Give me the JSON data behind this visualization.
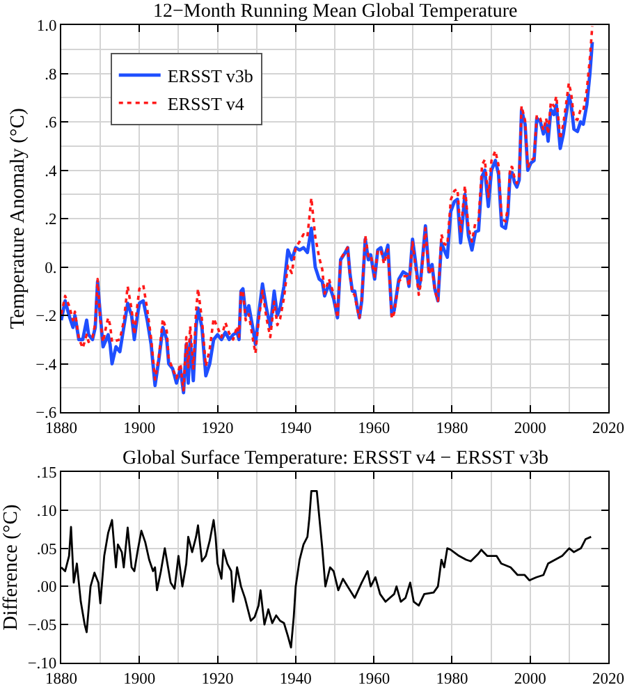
{
  "chart_data": [
    {
      "type": "line",
      "title": "12−Month Running Mean Global Temperature",
      "ylabel": "Temperature Anomaly (°C)",
      "xlim": [
        1880,
        2020
      ],
      "xticks": [
        1880,
        {
          "value": 1890,
          "label": null
        },
        1900,
        {
          "value": 1910,
          "label": null
        },
        1920,
        {
          "value": 1930,
          "label": null
        },
        1940,
        {
          "value": 1950,
          "label": null
        },
        1960,
        {
          "value": 1970,
          "label": null
        },
        1980,
        {
          "value": 1990,
          "label": null
        },
        2000,
        {
          "value": 2010,
          "label": null
        },
        2020
      ],
      "ylim": [
        -0.6,
        1.0
      ],
      "yticks": [
        {
          "value": -0.6,
          "label": "−.6"
        },
        {
          "value": -0.5,
          "label": null
        },
        {
          "value": -0.4,
          "label": "−.4"
        },
        {
          "value": -0.3,
          "label": null
        },
        {
          "value": -0.2,
          "label": "−.2"
        },
        {
          "value": -0.1,
          "label": null
        },
        {
          "value": 0,
          "label": "0."
        },
        {
          "value": 0.1,
          "label": null
        },
        {
          "value": 0.2,
          "label": ".2"
        },
        {
          "value": 0.3,
          "label": null
        },
        {
          "value": 0.4,
          "label": ".4"
        },
        {
          "value": 0.5,
          "label": null
        },
        {
          "value": 0.6,
          "label": ".6"
        },
        {
          "value": 0.7,
          "label": null
        },
        {
          "value": 0.8,
          "label": ".8"
        },
        {
          "value": 0.9,
          "label": null
        },
        {
          "value": 1.0,
          "label": "1.0"
        }
      ],
      "grid": true,
      "legend": "top left",
      "series": [
        {
          "name": "ERSST v3b",
          "color": "#1f4fff",
          "line_style": "solid",
          "x": [
            1880,
            1881,
            1882,
            1883,
            1883.5,
            1884.5,
            1885.5,
            1886.5,
            1887,
            1888,
            1888.7,
            1889.3,
            1890,
            1890.7,
            1891.5,
            1892,
            1892.5,
            1893,
            1894,
            1895,
            1896,
            1897,
            1898,
            1898.7,
            1899.5,
            1900,
            1901,
            1902,
            1903,
            1904,
            1905,
            1906,
            1907,
            1907.5,
            1908.5,
            1909.5,
            1910.5,
            1911.3,
            1912,
            1912.5,
            1913,
            1913.8,
            1914.5,
            1915,
            1916,
            1917,
            1918,
            1919,
            1920,
            1921,
            1922,
            1923,
            1924,
            1925,
            1925.5,
            1926,
            1926.5,
            1927.2,
            1928,
            1929,
            1929.7,
            1930.5,
            1931.5,
            1932.5,
            1933.5,
            1934.5,
            1935.3,
            1936,
            1937,
            1938,
            1939,
            1940,
            1941,
            1942,
            1943,
            1944,
            1945,
            1946,
            1946.8,
            1947.4,
            1948.5,
            1949.7,
            1950.7,
            1951.5,
            1952.7,
            1953.3,
            1953.9,
            1954.5,
            1955.1,
            1955.7,
            1956.3,
            1956.9,
            1957.8,
            1958.6,
            1959.2,
            1960.2,
            1961,
            1961.8,
            1962.6,
            1963.6,
            1964,
            1964.6,
            1965.2,
            1966.4,
            1967.5,
            1968.5,
            1969,
            1969.9,
            1970.6,
            1971.5,
            1972,
            1973.2,
            1974.1,
            1974.9,
            1975.6,
            1976.4,
            1977.3,
            1978,
            1978.8,
            1979.7,
            1980.6,
            1981.4,
            1982.2,
            1983.3,
            1984.2,
            1985.1,
            1986,
            1986.8,
            1987.7,
            1988.4,
            1989.3,
            1990.1,
            1991.1,
            1991.9,
            1992.7,
            1993.7,
            1994.3,
            1994.9,
            1995.4,
            1996,
            1996.6,
            1997.2,
            1997.8,
            1998.7,
            1999.4,
            2000.2,
            2001,
            2001.7,
            2002.6,
            2003.4,
            2004.1,
            2004.6,
            2005.3,
            2006.1,
            2006.7,
            2007.7,
            2008.5,
            2009.3,
            2009.9,
            2010.5,
            2011.2,
            2012.1,
            2012.9,
            2013.6,
            2014.5,
            2015.3,
            2015.9
          ],
          "values": [
            -0.22,
            -0.14,
            -0.2,
            -0.25,
            -0.2,
            -0.3,
            -0.3,
            -0.22,
            -0.28,
            -0.3,
            -0.25,
            -0.06,
            -0.2,
            -0.33,
            -0.3,
            -0.28,
            -0.32,
            -0.4,
            -0.33,
            -0.35,
            -0.25,
            -0.15,
            -0.2,
            -0.3,
            -0.2,
            -0.15,
            -0.14,
            -0.22,
            -0.32,
            -0.49,
            -0.38,
            -0.25,
            -0.3,
            -0.4,
            -0.42,
            -0.48,
            -0.42,
            -0.52,
            -0.32,
            -0.48,
            -0.3,
            -0.47,
            -0.25,
            -0.17,
            -0.25,
            -0.45,
            -0.4,
            -0.3,
            -0.28,
            -0.3,
            -0.27,
            -0.3,
            -0.28,
            -0.27,
            -0.3,
            -0.1,
            -0.09,
            -0.2,
            -0.16,
            -0.25,
            -0.32,
            -0.2,
            -0.07,
            -0.17,
            -0.25,
            -0.1,
            -0.2,
            -0.17,
            -0.08,
            0.07,
            0.03,
            0.08,
            0.07,
            0.08,
            0.06,
            0.16,
            0.0,
            -0.05,
            -0.06,
            -0.12,
            -0.07,
            -0.13,
            -0.21,
            0.03,
            0.06,
            0.08,
            -0.03,
            -0.1,
            -0.1,
            -0.16,
            -0.21,
            -0.14,
            0.115,
            0.03,
            0.05,
            -0.05,
            0.07,
            0.08,
            0.03,
            0.09,
            -0.03,
            -0.2,
            -0.18,
            -0.05,
            -0.02,
            -0.03,
            -0.08,
            0.115,
            0.03,
            -0.09,
            -0.05,
            0.17,
            -0.02,
            0.01,
            -0.09,
            -0.14,
            0.1,
            0.07,
            0.04,
            0.23,
            0.27,
            0.28,
            0.1,
            0.3,
            0.13,
            0.07,
            0.145,
            0.15,
            0.375,
            0.4,
            0.25,
            0.4,
            0.44,
            0.385,
            0.17,
            0.16,
            0.22,
            0.39,
            0.39,
            0.35,
            0.33,
            0.36,
            0.65,
            0.59,
            0.4,
            0.43,
            0.44,
            0.615,
            0.6,
            0.55,
            0.59,
            0.52,
            0.65,
            0.63,
            0.67,
            0.49,
            0.55,
            0.64,
            0.71,
            0.67,
            0.57,
            0.56,
            0.6,
            0.59,
            0.67,
            0.8,
            0.93
          ]
        },
        {
          "name": "ERSST v4",
          "color": "#ff1a1a",
          "line_style": "dotted",
          "x": [
            1880,
            1881,
            1882,
            1883,
            1883.5,
            1884.5,
            1885.5,
            1886.5,
            1887,
            1888,
            1888.7,
            1889.3,
            1890,
            1890.7,
            1891.5,
            1892,
            1892.5,
            1893,
            1894,
            1895,
            1896,
            1897,
            1898,
            1898.7,
            1899.5,
            1900,
            1901,
            1902,
            1903,
            1904,
            1905,
            1906,
            1907,
            1907.5,
            1908.5,
            1909.5,
            1910.5,
            1911.3,
            1912,
            1912.5,
            1913,
            1913.8,
            1914.5,
            1915,
            1916,
            1917,
            1918,
            1919,
            1920,
            1921,
            1922,
            1923,
            1924,
            1925,
            1925.5,
            1926,
            1926.5,
            1927.2,
            1928,
            1929,
            1929.7,
            1930.5,
            1931.5,
            1932.5,
            1933.5,
            1934.5,
            1935.3,
            1936,
            1937,
            1938,
            1939,
            1940,
            1941,
            1942,
            1943,
            1944,
            1945,
            1946,
            1946.8,
            1947.4,
            1948.5,
            1949.7,
            1950.7,
            1951.5,
            1952.7,
            1953.3,
            1953.9,
            1954.5,
            1955.1,
            1955.7,
            1956.3,
            1956.9,
            1957.8,
            1958.6,
            1959.2,
            1960.2,
            1961,
            1961.8,
            1962.6,
            1963.6,
            1964,
            1964.6,
            1965.2,
            1966.4,
            1967.5,
            1968.5,
            1969,
            1969.9,
            1970.6,
            1971.5,
            1972,
            1973.2,
            1974.1,
            1974.9,
            1975.6,
            1976.4,
            1977.3,
            1978,
            1978.8,
            1979.7,
            1980.6,
            1981.4,
            1982.2,
            1983.3,
            1984.2,
            1985.1,
            1986,
            1986.8,
            1987.7,
            1988.4,
            1989.3,
            1990.1,
            1991.1,
            1991.9,
            1992.7,
            1993.7,
            1994.3,
            1994.9,
            1995.4,
            1996,
            1996.6,
            1997.2,
            1997.8,
            1998.7,
            1999.4,
            2000.2,
            2001,
            2001.7,
            2002.6,
            2003.4,
            2004.1,
            2004.6,
            2005.3,
            2006.1,
            2006.7,
            2007.7,
            2008.5,
            2009.3,
            2009.9,
            2010.5,
            2011.2,
            2012.1,
            2012.9,
            2013.6,
            2014.5,
            2015.3,
            2015.9
          ],
          "values": [
            -0.195,
            -0.12,
            -0.16,
            -0.22,
            -0.185,
            -0.295,
            -0.335,
            -0.28,
            -0.31,
            -0.29,
            -0.235,
            -0.05,
            -0.22,
            -0.31,
            -0.245,
            -0.21,
            -0.24,
            -0.31,
            -0.305,
            -0.3,
            -0.225,
            -0.08,
            -0.175,
            -0.28,
            -0.155,
            -0.09,
            -0.075,
            -0.175,
            -0.295,
            -0.465,
            -0.37,
            -0.215,
            -0.265,
            -0.38,
            -0.42,
            -0.46,
            -0.4,
            -0.51,
            -0.29,
            -0.415,
            -0.245,
            -0.42,
            -0.185,
            -0.09,
            -0.217,
            -0.41,
            -0.34,
            -0.213,
            -0.25,
            -0.29,
            -0.23,
            -0.275,
            -0.3,
            -0.245,
            -0.288,
            -0.1,
            -0.098,
            -0.22,
            -0.195,
            -0.293,
            -0.357,
            -0.225,
            -0.098,
            -0.21,
            -0.29,
            -0.143,
            -0.24,
            -0.215,
            -0.128,
            0.005,
            -0.025,
            0.08,
            0.105,
            0.135,
            0.125,
            0.285,
            0.125,
            0.04,
            -0.01,
            -0.11,
            -0.05,
            -0.11,
            -0.21,
            0.033,
            0.065,
            0.08,
            -0.035,
            -0.11,
            -0.115,
            -0.17,
            -0.21,
            -0.135,
            0.13,
            0.045,
            0.05,
            -0.04,
            0.07,
            0.068,
            0.013,
            0.072,
            -0.046,
            -0.213,
            -0.19,
            -0.06,
            -0.038,
            -0.038,
            -0.08,
            0.103,
            0.008,
            -0.115,
            -0.07,
            0.16,
            -0.029,
            0.002,
            -0.096,
            -0.14,
            0.135,
            0.095,
            0.09,
            0.278,
            0.315,
            0.322,
            0.14,
            0.336,
            0.164,
            0.105,
            0.185,
            0.193,
            0.422,
            0.444,
            0.29,
            0.44,
            0.48,
            0.421,
            0.2,
            0.188,
            0.246,
            0.415,
            0.413,
            0.368,
            0.346,
            0.375,
            0.665,
            0.605,
            0.41,
            0.439,
            0.451,
            0.627,
            0.613,
            0.565,
            0.614,
            0.55,
            0.682,
            0.664,
            0.706,
            0.528,
            0.592,
            0.686,
            0.76,
            0.718,
            0.615,
            0.608,
            0.65,
            0.646,
            0.732,
            0.864,
            0.995
          ]
        }
      ]
    },
    {
      "type": "line",
      "title": "Global Surface Temperature: ERSST v4 − ERSST v3b",
      "ylabel": "Difference (°C)",
      "xlim": [
        1880,
        2020
      ],
      "xticks": [
        1880,
        {
          "value": 1890,
          "label": null
        },
        1900,
        {
          "value": 1910,
          "label": null
        },
        1920,
        {
          "value": 1930,
          "label": null
        },
        1940,
        {
          "value": 1950,
          "label": null
        },
        1960,
        {
          "value": 1970,
          "label": null
        },
        1980,
        {
          "value": 1990,
          "label": null
        },
        2000,
        {
          "value": 2010,
          "label": null
        },
        2020
      ],
      "ylim": [
        -0.1,
        0.15
      ],
      "yticks": [
        {
          "value": -0.1,
          "label": "−.10"
        },
        {
          "value": -0.05,
          "label": "−.05"
        },
        {
          "value": 0,
          "label": ".00"
        },
        {
          "value": 0.05,
          "label": ".05"
        },
        {
          "value": 0.1,
          "label": ".10"
        },
        {
          "value": 0.15,
          "label": ".15"
        }
      ],
      "grid": true,
      "series": [
        {
          "color": "#000000",
          "line_style": "solid",
          "x": [
            1880,
            1881,
            1882,
            1882.5,
            1883.2,
            1884,
            1885,
            1886,
            1886.5,
            1887.5,
            1888.5,
            1889.5,
            1890,
            1891,
            1892,
            1893,
            1894,
            1894.5,
            1895.5,
            1896,
            1897,
            1898,
            1898.7,
            1899.5,
            1900.5,
            1901.5,
            1902.5,
            1903.5,
            1904,
            1904.5,
            1905.5,
            1906.5,
            1907.5,
            1908,
            1909,
            1910,
            1911,
            1912,
            1912.5,
            1913.5,
            1914.5,
            1915,
            1916,
            1917,
            1918,
            1919,
            1919.5,
            1920,
            1921,
            1921.5,
            1922.5,
            1923.5,
            1924,
            1925,
            1926,
            1927,
            1928.5,
            1929.5,
            1930.5,
            1931,
            1932,
            1933,
            1934,
            1935,
            1936,
            1937,
            1938,
            1938.8,
            1939.5,
            1940,
            1941,
            1942,
            1943,
            1943.5,
            1944,
            1945.4,
            1946.8,
            1947.6,
            1948.8,
            1949.7,
            1950.9,
            1952.1,
            1953.3,
            1955.1,
            1956.9,
            1958.4,
            1959.2,
            1960.4,
            1961.6,
            1963,
            1965.2,
            1965.8,
            1966.9,
            1968.1,
            1969.3,
            1970.2,
            1971.5,
            1972.9,
            1975.3,
            1976.4,
            1977.3,
            1978,
            1978.8,
            1979.7,
            1981.8,
            1983.6,
            1984.8,
            1986.6,
            1987.5,
            1989,
            1991.4,
            1992.6,
            1995,
            1996.8,
            1998.6,
            1999.8,
            2001.6,
            2003.4,
            2004.6,
            2006.4,
            2008.2,
            2010,
            2011.2,
            2013,
            2014.2,
            2015.6
          ],
          "values": [
            0.025,
            0.02,
            0.04,
            0.078,
            0.005,
            0.03,
            -0.02,
            -0.05,
            -0.06,
            0.0,
            0.018,
            0.005,
            -0.022,
            0.04,
            0.07,
            0.087,
            0.025,
            0.055,
            0.045,
            0.025,
            0.077,
            0.025,
            0.02,
            0.045,
            0.073,
            0.058,
            0.035,
            0.02,
            0.025,
            -0.005,
            0.02,
            0.05,
            0.02,
            0.005,
            -0.003,
            0.04,
            0.0,
            0.03,
            0.065,
            0.045,
            0.065,
            0.08,
            0.033,
            0.04,
            0.06,
            0.087,
            0.065,
            0.03,
            0.01,
            0.048,
            0.03,
            0.02,
            -0.02,
            0.025,
            0.0,
            -0.015,
            -0.045,
            -0.04,
            -0.025,
            -0.005,
            -0.05,
            -0.03,
            -0.048,
            -0.038,
            -0.045,
            -0.048,
            -0.065,
            -0.08,
            -0.04,
            0.0,
            0.035,
            0.055,
            0.065,
            0.09,
            0.125,
            0.125,
            0.05,
            0.0,
            0.025,
            0.02,
            -0.005,
            0.01,
            0.0,
            -0.015,
            0.005,
            0.02,
            0.0,
            0.012,
            -0.01,
            -0.02,
            -0.01,
            0.0,
            -0.02,
            -0.015,
            0.005,
            -0.02,
            -0.025,
            -0.01,
            -0.008,
            0.0,
            0.035,
            0.025,
            0.05,
            0.048,
            0.04,
            0.035,
            0.033,
            0.042,
            0.048,
            0.04,
            0.04,
            0.03,
            0.025,
            0.015,
            0.015,
            0.008,
            0.012,
            0.015,
            0.03,
            0.035,
            0.04,
            0.05,
            0.045,
            0.05,
            0.062,
            0.065
          ]
        }
      ]
    }
  ]
}
